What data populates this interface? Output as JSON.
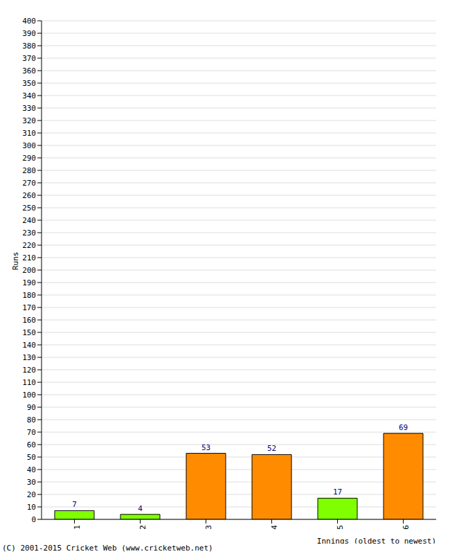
{
  "chart_data": {
    "type": "bar",
    "categories": [
      "1",
      "2",
      "3",
      "4",
      "5",
      "6"
    ],
    "values": [
      7,
      4,
      53,
      52,
      17,
      69
    ],
    "colors": [
      "#80ff00",
      "#80ff00",
      "#ff8c00",
      "#ff8c00",
      "#80ff00",
      "#ff8c00"
    ],
    "x_label": "Innings (oldest to newest)",
    "y_label": "Runs",
    "ylim": [
      0,
      400
    ],
    "yticks": [
      0,
      10,
      20,
      30,
      40,
      50,
      60,
      70,
      80,
      90,
      100,
      110,
      120,
      130,
      140,
      150,
      160,
      170,
      180,
      190,
      200,
      210,
      220,
      230,
      240,
      250,
      260,
      270,
      280,
      290,
      300,
      310,
      320,
      330,
      340,
      350,
      360,
      370,
      380,
      390,
      400
    ],
    "grid": true,
    "data_labels": true,
    "annotations": [
      "(C) 2001-2015 Cricket Web (www.cricketweb.net)"
    ]
  }
}
